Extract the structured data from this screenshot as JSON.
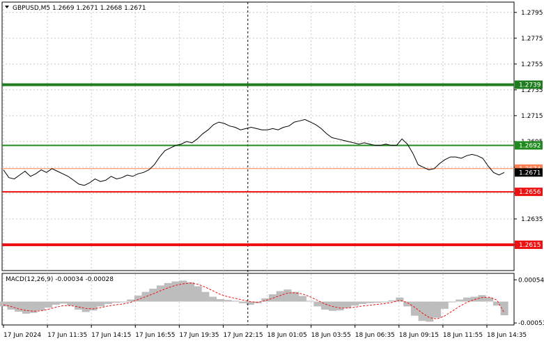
{
  "chart_data": {
    "type": "line",
    "title": "GBPUSD,M5  1.2669 1.2671 1.2668 1.2671",
    "symbol": "GBPUSD,M5",
    "ohlc": [
      "1.2669",
      "1.2671",
      "1.2668",
      "1.2671"
    ],
    "ylim": [
      1.2595,
      1.2803
    ],
    "y_ticks": [
      "1.2795",
      "1.2775",
      "1.2755",
      "1.2735",
      "1.2715",
      "1.2695",
      "1.2675",
      "1.2655",
      "1.2635",
      "1.2615"
    ],
    "x_ticks": [
      "17 Jun 2024",
      "17 Jun 11:35",
      "17 Jun 14:15",
      "17 Jun 16:55",
      "17 Jun 19:35",
      "17 Jun 22:15",
      "18 Jun 01:05",
      "18 Jun 03:55",
      "18 Jun 06:35",
      "18 Jun 09:15",
      "18 Jun 11:55",
      "18 Jun 14:35"
    ],
    "grid": true,
    "series": [
      {
        "values": [
          1.2673,
          1.2667,
          1.2666,
          1.2669,
          1.2672,
          1.2668,
          1.267,
          1.2673,
          1.2671,
          1.2674,
          1.2672,
          1.267,
          1.2668,
          1.2665,
          1.2662,
          1.2661,
          1.2663,
          1.2666,
          1.2664,
          1.2665,
          1.2668,
          1.2666,
          1.2667,
          1.2669,
          1.2668,
          1.267,
          1.2671,
          1.2673,
          1.2677,
          1.2683,
          1.2688,
          1.269,
          1.2692,
          1.2693,
          1.2695,
          1.2694,
          1.2697,
          1.2701,
          1.2704,
          1.2708,
          1.271,
          1.2709,
          1.2707,
          1.2706,
          1.2704,
          1.2705,
          1.2706,
          1.2705,
          1.2704,
          1.2704,
          1.2705,
          1.2704,
          1.2706,
          1.2707,
          1.271,
          1.2711,
          1.2712,
          1.271,
          1.2708,
          1.2705,
          1.2701,
          1.2698,
          1.2697,
          1.2696,
          1.2695,
          1.2694,
          1.2693,
          1.2694,
          1.2693,
          1.2692,
          1.2692,
          1.2693,
          1.2692,
          1.2692,
          1.2697,
          1.2693,
          1.2686,
          1.2677,
          1.2675,
          1.2673,
          1.2674,
          1.2678,
          1.2681,
          1.2683,
          1.2683,
          1.2682,
          1.2684,
          1.2685,
          1.2684,
          1.2682,
          1.2676,
          1.2671,
          1.2669,
          1.2671
        ],
        "color": "#000000"
      }
    ],
    "levels": [
      {
        "value": 1.2739,
        "label": "1.2739",
        "color": "#1f7d1f"
      },
      {
        "value": 1.2692,
        "label": "1.2692",
        "color": "#1f8b1f"
      },
      {
        "value": 1.2674,
        "label": "1.2674",
        "color": "#ff7f50"
      },
      {
        "value": 1.2656,
        "label": "1.2656",
        "color": "#ee1111"
      },
      {
        "value": 1.2615,
        "label": "1.2615",
        "color": "#ee1111"
      }
    ],
    "current_price_label": "1.2671",
    "macd": {
      "title": "MACD(12,26,9) -0.00034 -0.00028",
      "ylim": [
        -0.00058,
        0.0007
      ],
      "y_ticks": [
        "0.00054",
        "-0.00053"
      ],
      "histogram": [
        -0.00012,
        -0.0002,
        -0.00025,
        -0.0003,
        -0.00028,
        -0.00022,
        -0.00015,
        -8e-05,
        -5e-05,
        -0.0001,
        -0.0002,
        -0.00026,
        -0.00022,
        -0.00012,
        -6e-05,
        -3e-05,
        -2e-05,
        5e-05,
        0.00015,
        0.00024,
        0.00032,
        0.0004,
        0.00046,
        0.0005,
        0.00052,
        0.00048,
        0.00038,
        0.00024,
        0.00012,
        6e-05,
        4e-05,
        2e-05,
        -4e-05,
        -8e-05,
        -4e-05,
        8e-05,
        0.00018,
        0.00026,
        0.0003,
        0.00024,
        0.00014,
        2e-05,
        -0.00012,
        -0.0002,
        -0.00023,
        -0.00022,
        -0.00016,
        -0.0001,
        -6e-05,
        -4e-05,
        -3e-05,
        -2e-05,
        3e-05,
        0.0001,
        -0.00012,
        -0.00035,
        -0.00048,
        -0.0005,
        -0.0004,
        -0.00018,
        -2e-05,
        5e-05,
        0.0001,
        0.00012,
        0.00016,
        0.0001,
        -0.0001,
        -0.00034
      ],
      "signal": [
        -8e-05,
        -0.00012,
        -0.00018,
        -0.00022,
        -0.00024,
        -0.00023,
        -0.00019,
        -0.00014,
        -0.0001,
        -0.0001,
        -0.00013,
        -0.00017,
        -0.00018,
        -0.00015,
        -0.00011,
        -8e-05,
        -6e-05,
        -2e-05,
        5e-05,
        0.00012,
        0.00019,
        0.00027,
        0.00034,
        0.0004,
        0.00044,
        0.00046,
        0.00043,
        0.00036,
        0.00027,
        0.00018,
        0.00012,
        8e-05,
        4e-05,
        0.0,
        -2e-05,
        2e-05,
        8e-05,
        0.00015,
        0.00021,
        0.00022,
        0.00019,
        0.00012,
        3e-05,
        -6e-05,
        -0.00012,
        -0.00016,
        -0.00016,
        -0.00014,
        -0.00011,
        -9e-05,
        -7e-05,
        -5e-05,
        -2e-05,
        3e-05,
        -2e-05,
        -0.00014,
        -0.00028,
        -0.0004,
        -0.00043,
        -0.00036,
        -0.00024,
        -0.00012,
        -2e-05,
        5e-05,
        0.0001,
        0.00011,
        4e-05,
        -0.00028
      ]
    }
  }
}
